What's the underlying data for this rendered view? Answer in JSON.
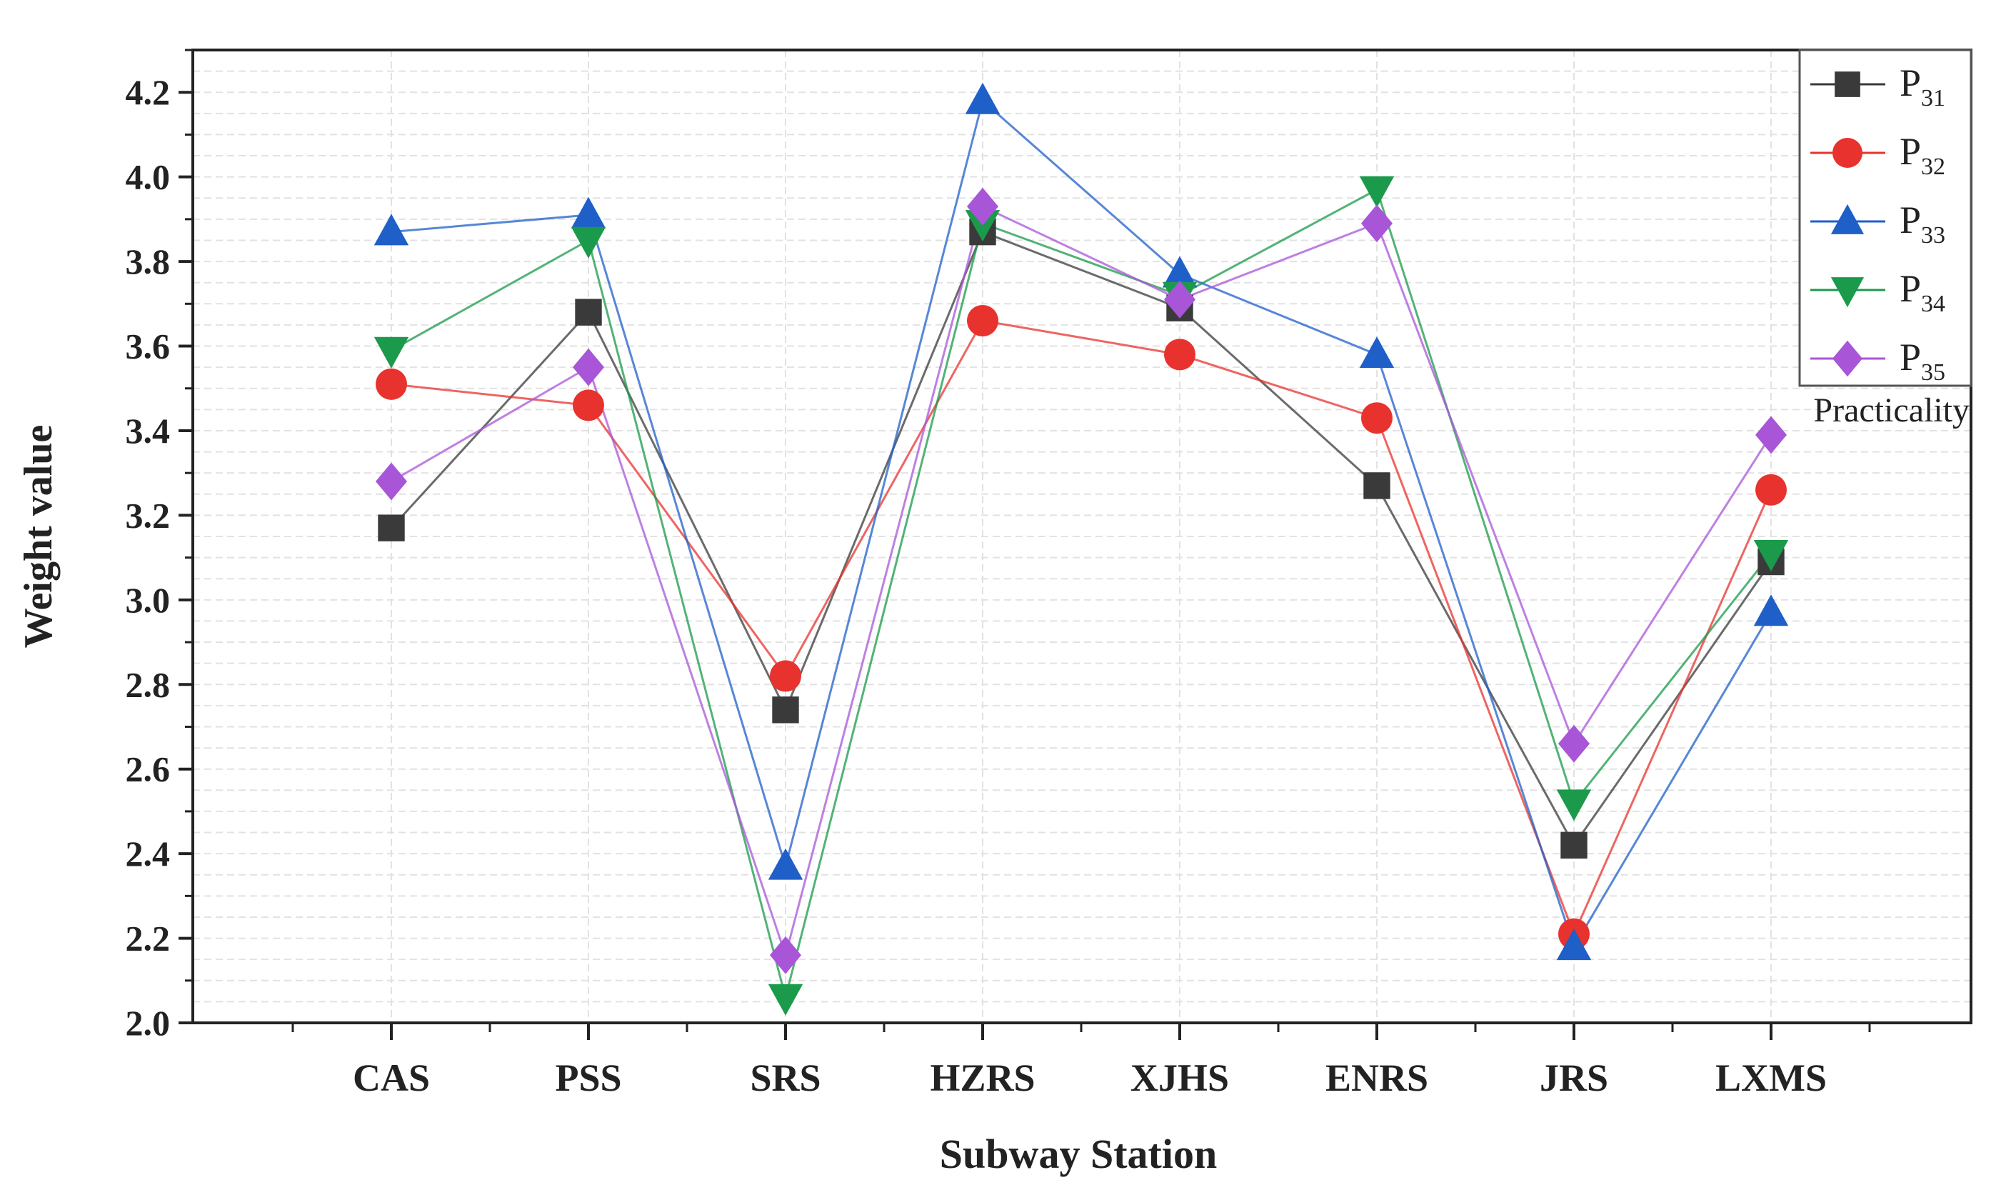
{
  "chart_data": {
    "type": "line",
    "title": "",
    "xlabel": "Subway Station",
    "ylabel": "Weight value",
    "ylim": [
      2.0,
      4.3
    ],
    "yticks": [
      "2.0",
      "2.2",
      "2.4",
      "2.6",
      "2.8",
      "3.0",
      "3.2",
      "3.4",
      "3.6",
      "3.8",
      "4.0",
      "4.2"
    ],
    "ytick_values": [
      2.0,
      2.2,
      2.4,
      2.6,
      2.8,
      3.0,
      3.2,
      3.4,
      3.6,
      3.8,
      4.0,
      4.2
    ],
    "grid": true,
    "legend_title": "Practicality",
    "legend_position": "top-right",
    "categories": [
      "CAS",
      "PSS",
      "SRS",
      "HZRS",
      "XJHS",
      "ENRS",
      "JRS",
      "LXMS"
    ],
    "series": [
      {
        "name": "P",
        "sub": "31",
        "color": "#3a3a3a",
        "marker": "square",
        "values": [
          3.17,
          3.68,
          2.74,
          3.87,
          3.69,
          3.27,
          2.42,
          3.09
        ]
      },
      {
        "name": "P",
        "sub": "32",
        "color": "#e8322e",
        "marker": "circle",
        "values": [
          3.51,
          3.46,
          2.82,
          3.66,
          3.58,
          3.43,
          2.21,
          3.26
        ]
      },
      {
        "name": "P",
        "sub": "33",
        "color": "#1f5fc8",
        "marker": "triangle-up",
        "values": [
          3.87,
          3.91,
          2.37,
          4.18,
          3.77,
          3.58,
          2.18,
          2.97
        ]
      },
      {
        "name": "P",
        "sub": "34",
        "color": "#1a9a4a",
        "marker": "triangle-down",
        "values": [
          3.59,
          3.85,
          2.06,
          3.89,
          3.72,
          3.97,
          2.52,
          3.11
        ]
      },
      {
        "name": "P",
        "sub": "35",
        "color": "#a855d8",
        "marker": "diamond",
        "values": [
          3.28,
          3.55,
          2.16,
          3.93,
          3.71,
          3.89,
          2.66,
          3.39
        ]
      }
    ]
  }
}
